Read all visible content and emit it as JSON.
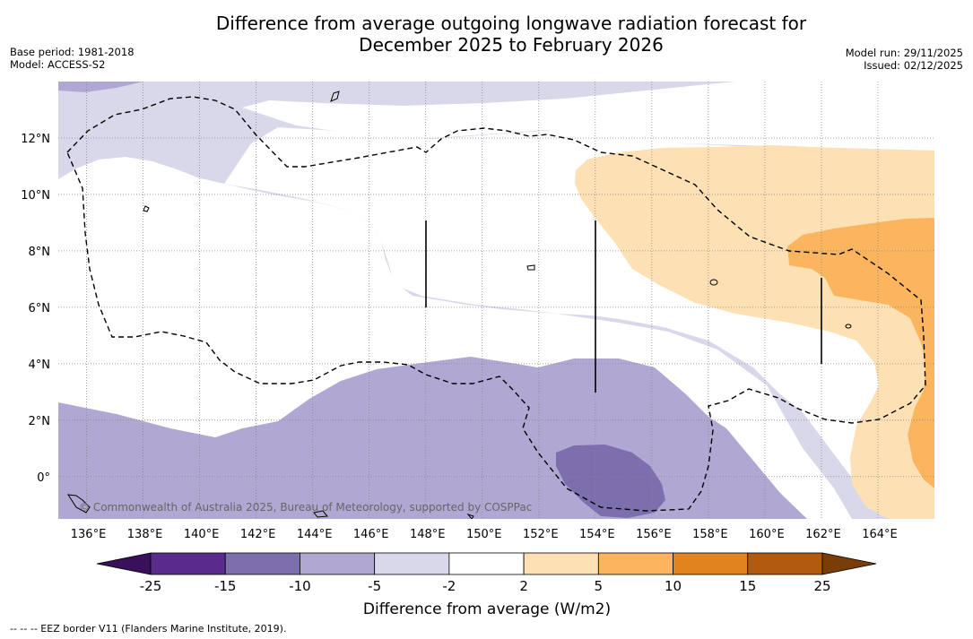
{
  "title_line1": "Difference from average outgoing longwave radiation forecast for",
  "title_line2": "December 2025 to February 2026",
  "meta_left": {
    "base_period": "Base period: 1981-2018",
    "model": "Model: ACCESS-S2"
  },
  "meta_right": {
    "model_run": "Model run: 29/11/2025",
    "issued": "Issued: 02/12/2025"
  },
  "map": {
    "lon_range": [
      135,
      166
    ],
    "lat_range": [
      -1.5,
      14
    ],
    "lon_ticks": [
      {
        "value": 136,
        "label": "136°E"
      },
      {
        "value": 138,
        "label": "138°E"
      },
      {
        "value": 140,
        "label": "140°E"
      },
      {
        "value": 142,
        "label": "142°E"
      },
      {
        "value": 144,
        "label": "144°E"
      },
      {
        "value": 146,
        "label": "146°E"
      },
      {
        "value": 148,
        "label": "148°E"
      },
      {
        "value": 150,
        "label": "150°E"
      },
      {
        "value": 152,
        "label": "152°E"
      },
      {
        "value": 154,
        "label": "154°E"
      },
      {
        "value": 156,
        "label": "156°E"
      },
      {
        "value": 158,
        "label": "158°E"
      },
      {
        "value": 160,
        "label": "160°E"
      },
      {
        "value": 162,
        "label": "162°E"
      },
      {
        "value": 164,
        "label": "164°E"
      }
    ],
    "lat_ticks": [
      {
        "value": 12,
        "label": "12°N"
      },
      {
        "value": 10,
        "label": "10°N"
      },
      {
        "value": 8,
        "label": "8°N"
      },
      {
        "value": 6,
        "label": "6°N"
      },
      {
        "value": 4,
        "label": "4°N"
      },
      {
        "value": 2,
        "label": "2°N"
      },
      {
        "value": 0,
        "label": "0°"
      }
    ],
    "copyright": "© Commonwealth of Australia 2025, Bureau of Meteorology, supported by COSPPac"
  },
  "colorbar": {
    "bins": [
      {
        "color": "#5a2b8c"
      },
      {
        "color": "#7d6fad"
      },
      {
        "color": "#b0a8d3"
      },
      {
        "color": "#d8d8ea"
      },
      {
        "color": "#ffffff"
      },
      {
        "color": "#fde0b4"
      },
      {
        "color": "#fbb55f"
      },
      {
        "color": "#e1831f"
      },
      {
        "color": "#b25b0f"
      }
    ],
    "low_extend_color": "#3a0f5c",
    "high_extend_color": "#7a3d08",
    "tick_labels": [
      "-25",
      "-15",
      "-10",
      "-5",
      "-2",
      "2",
      "5",
      "10",
      "15",
      "25"
    ],
    "label": "Difference from average (W/m2)"
  },
  "footer": "--  --  -- EEZ border V11 (Flanders Marine Institute, 2019)."
}
